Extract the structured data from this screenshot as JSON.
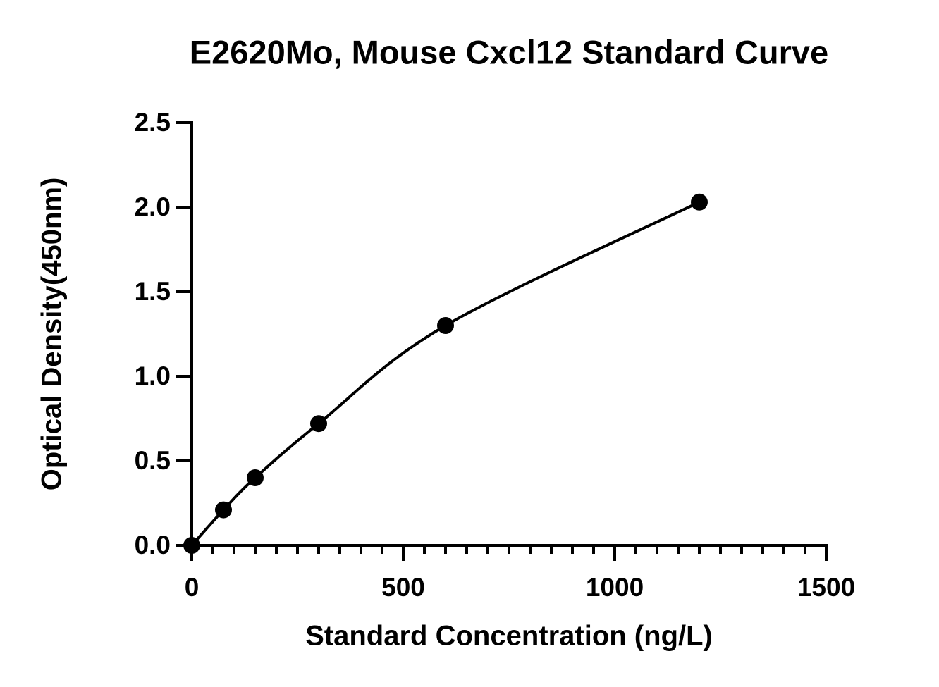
{
  "chart_data": {
    "type": "scatter",
    "title": "E2620Mo, Mouse Cxcl12 Standard Curve",
    "x_label": "Standard Concentration (ng/L)",
    "y_label": "Optical Density(450nm)",
    "x": [
      0,
      75,
      150,
      300,
      600,
      1200
    ],
    "values": [
      0.0,
      0.21,
      0.4,
      0.72,
      1.3,
      2.03
    ],
    "color": "#000000",
    "line": true,
    "xlim": [
      0,
      1500
    ],
    "xticks": [
      0,
      500,
      1000,
      1500
    ],
    "ylim": [
      0,
      2.5
    ],
    "yticks": [
      {
        "value": 0,
        "label": "0.0"
      },
      {
        "value": 0.5,
        "label": "0.5"
      },
      {
        "value": 1,
        "label": "1.0"
      },
      {
        "value": 1.5,
        "label": "1.5"
      },
      {
        "value": 2,
        "label": "2.0"
      },
      {
        "value": 2.5,
        "label": "2.5"
      }
    ]
  }
}
